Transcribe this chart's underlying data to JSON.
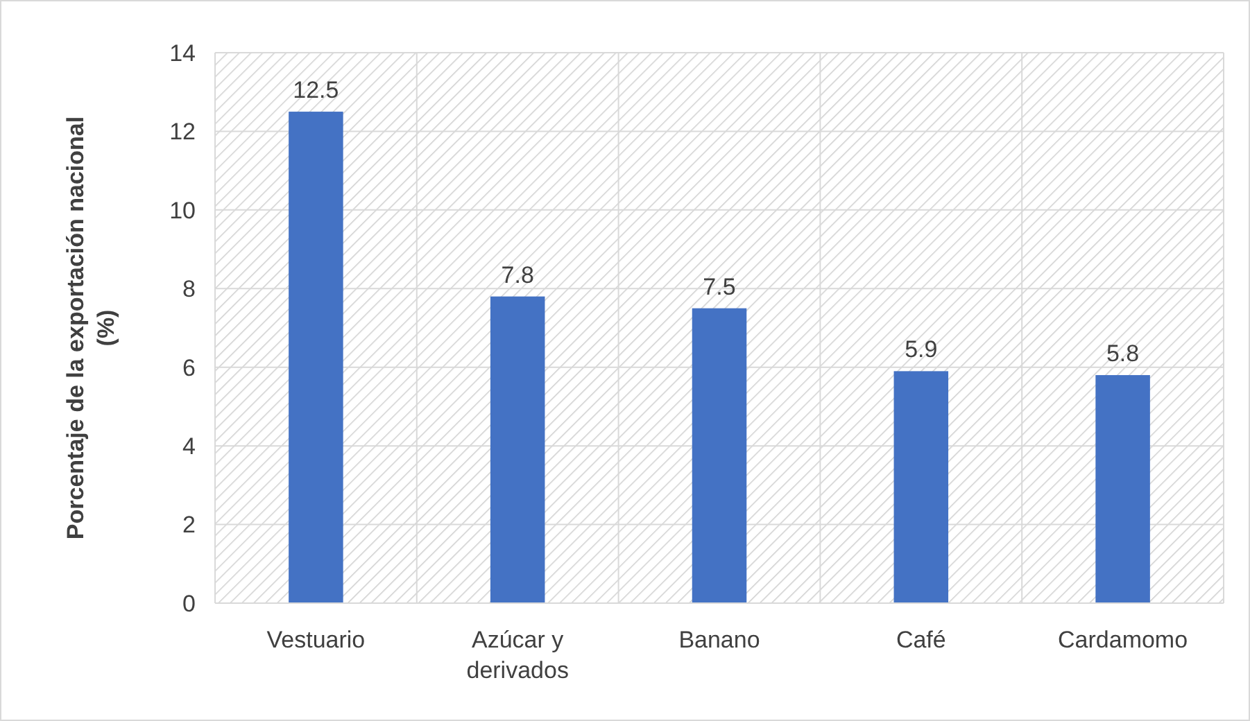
{
  "chart_data": {
    "type": "bar",
    "ylabel": "Porcentaje de la exportación nacional (%)",
    "categories": [
      "Vestuario",
      "Azúcar y derivados",
      "Banano",
      "Café",
      "Cardamomo"
    ],
    "values": [
      12.5,
      7.8,
      7.5,
      5.9,
      5.8
    ],
    "color": "#4472c4",
    "ylim": [
      0,
      14
    ],
    "yticks": [
      0,
      2,
      4,
      6,
      8,
      10,
      12,
      14
    ],
    "grid": true,
    "data_labels": true
  }
}
